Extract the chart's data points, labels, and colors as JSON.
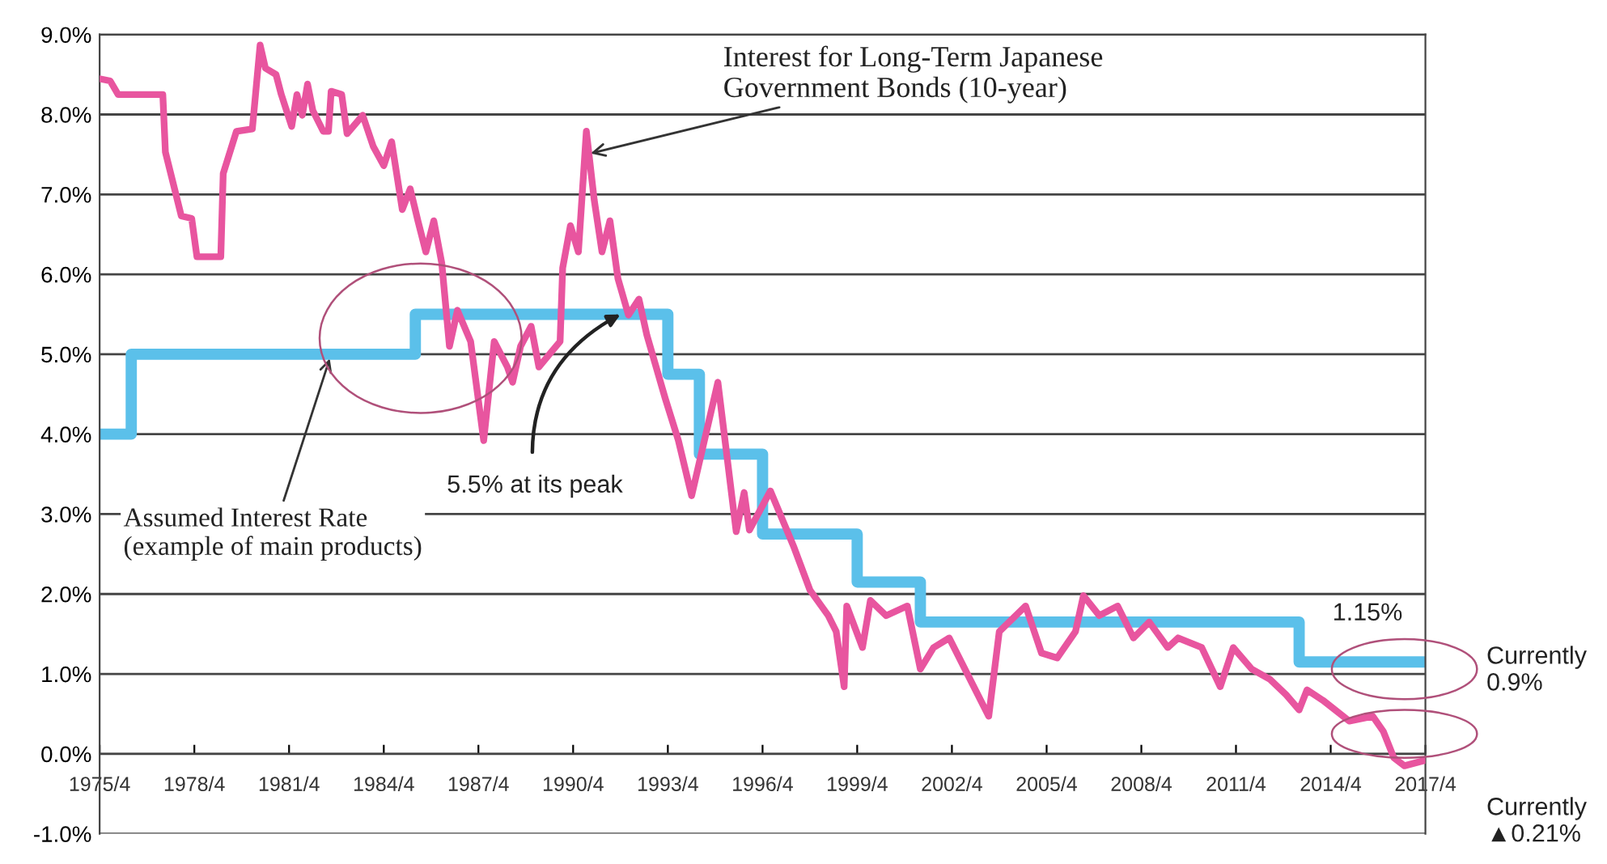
{
  "chart_data": {
    "type": "line",
    "xlim": [
      "1975-04",
      "2017-04"
    ],
    "xticks": [
      {
        "value": "1975-04",
        "label": "1975/4"
      },
      {
        "value": "1978-04",
        "label": "1978/4"
      },
      {
        "value": "1981-04",
        "label": "1981/4"
      },
      {
        "value": "1984-04",
        "label": "1984/4"
      },
      {
        "value": "1987-04",
        "label": "1987/4"
      },
      {
        "value": "1990-04",
        "label": "1990/4"
      },
      {
        "value": "1993-04",
        "label": "1993/4"
      },
      {
        "value": "1996-04",
        "label": "1996/4"
      },
      {
        "value": "1999-04",
        "label": "1999/4"
      },
      {
        "value": "2002-04",
        "label": "2002/4"
      },
      {
        "value": "2005-04",
        "label": "2005/4"
      },
      {
        "value": "2008-04",
        "label": "2008/4"
      },
      {
        "value": "2011-04",
        "label": "2011/4"
      },
      {
        "value": "2014-04",
        "label": "2014/4"
      },
      {
        "value": "2017-04",
        "label": "2017/4"
      }
    ],
    "ylim": [
      -1,
      9
    ],
    "yticks": [
      {
        "value": -1,
        "label": "-1.0%"
      },
      {
        "value": 0,
        "label": "0.0%"
      },
      {
        "value": 1,
        "label": "1.0%"
      },
      {
        "value": 2,
        "label": "2.0%"
      },
      {
        "value": 3,
        "label": "3.0%"
      },
      {
        "value": 4,
        "label": "4.0%"
      },
      {
        "value": 5,
        "label": "5.0%"
      },
      {
        "value": 6,
        "label": "6.0%"
      },
      {
        "value": 7,
        "label": "7.0%"
      },
      {
        "value": 8,
        "label": "8.0%"
      },
      {
        "value": 9,
        "label": "9.0%"
      }
    ],
    "grid": "y",
    "series": [
      {
        "color": "#e8559f",
        "x": [
          "1975-05",
          "1975-08",
          "1975-11",
          "1977-04",
          "1977-05",
          "1977-11",
          "1978-03",
          "1978-05",
          "1979-02",
          "1979-03",
          "1979-08",
          "1980-02",
          "1980-05",
          "1980-07",
          "1980-11",
          "1981-01",
          "1981-05",
          "1981-07",
          "1981-09",
          "1981-11",
          "1982-01",
          "1982-05",
          "1982-07",
          "1982-08",
          "1982-12",
          "1983-02",
          "1983-08",
          "1983-12",
          "1984-04",
          "1984-07",
          "1984-11",
          "1985-02",
          "1985-05",
          "1985-08",
          "1985-11",
          "1986-02",
          "1986-05",
          "1986-08",
          "1987-01",
          "1987-06",
          "1987-10",
          "1988-03",
          "1988-05",
          "1988-08",
          "1988-12",
          "1989-03",
          "1989-08",
          "1989-11",
          "1989-12",
          "1990-03",
          "1990-06",
          "1990-09",
          "1990-12",
          "1991-03",
          "1991-06",
          "1991-09",
          "1992-01",
          "1992-05",
          "1992-08",
          "1993-03",
          "1993-08",
          "1994-01",
          "1994-11",
          "1995-06",
          "1995-09",
          "1995-11",
          "1996-07",
          "1997-04",
          "1997-10",
          "1998-05",
          "1998-08",
          "1998-11",
          "1998-12",
          "1999-06",
          "1999-09",
          "2000-03",
          "2000-11",
          "2001-04",
          "2001-09",
          "2002-03",
          "2002-12",
          "2003-06",
          "2003-10",
          "2004-08",
          "2005-02",
          "2005-08",
          "2006-03",
          "2006-06",
          "2006-12",
          "2007-07",
          "2008-01",
          "2008-07",
          "2009-02",
          "2009-06",
          "2010-03",
          "2010-10",
          "2011-03",
          "2011-10",
          "2012-05",
          "2012-11",
          "2013-04",
          "2013-07",
          "2014-01",
          "2014-11",
          "2015-08",
          "2015-12",
          "2016-04",
          "2016-08",
          "2017-04"
        ],
        "values": [
          8.44,
          8.42,
          8.25,
          8.25,
          7.53,
          6.73,
          6.7,
          6.22,
          6.22,
          7.26,
          7.79,
          7.82,
          8.87,
          8.58,
          8.5,
          8.25,
          7.85,
          8.25,
          7.99,
          8.38,
          8.05,
          7.79,
          7.79,
          8.29,
          8.25,
          7.76,
          7.99,
          7.6,
          7.36,
          7.66,
          6.81,
          7.07,
          6.67,
          6.28,
          6.67,
          6.14,
          5.1,
          5.55,
          5.16,
          3.92,
          5.16,
          4.84,
          4.65,
          5.1,
          5.35,
          4.84,
          5.04,
          5.16,
          6.08,
          6.61,
          6.28,
          7.79,
          6.93,
          6.28,
          6.67,
          5.95,
          5.49,
          5.69,
          5.24,
          4.45,
          3.92,
          3.23,
          4.65,
          2.78,
          3.27,
          2.8,
          3.29,
          2.58,
          2.05,
          1.73,
          1.53,
          0.84,
          1.85,
          1.33,
          1.92,
          1.73,
          1.85,
          1.06,
          1.33,
          1.45,
          0.86,
          0.47,
          1.53,
          1.85,
          1.26,
          1.2,
          1.53,
          1.98,
          1.73,
          1.85,
          1.45,
          1.65,
          1.33,
          1.45,
          1.33,
          0.84,
          1.33,
          1.06,
          0.93,
          0.74,
          0.55,
          0.8,
          0.67,
          0.41,
          0.47,
          0.28,
          -0.05,
          -0.15,
          -0.08
        ]
      },
      {
        "type": "step",
        "color": "#5bc0ea",
        "x": [
          "1975-04",
          "1976-04",
          "1985-04",
          "1993-04",
          "1994-04",
          "1996-04",
          "1999-04",
          "2001-04",
          "2013-04",
          "2017-04"
        ],
        "values": [
          4.0,
          5.0,
          5.5,
          4.75,
          3.75,
          2.75,
          2.15,
          1.65,
          1.15,
          1.15
        ]
      }
    ],
    "annotations": [
      {
        "text": "Interest for Long-Term Japanese\nGovernment Bonds (10-year)",
        "x": "1990-09",
        "y": 7.5
      },
      {
        "text": "Assumed Interest Rate\n(example of main products)",
        "x": "1982-08",
        "y": 5.0
      },
      {
        "text": "5.5% at its peak",
        "x": "1991-10",
        "y": 5.5
      },
      {
        "text": "1.15%",
        "x": "2015-09",
        "y": 1.15
      },
      "Currently\n0.9%",
      "Currently\n▲0.21%"
    ]
  }
}
